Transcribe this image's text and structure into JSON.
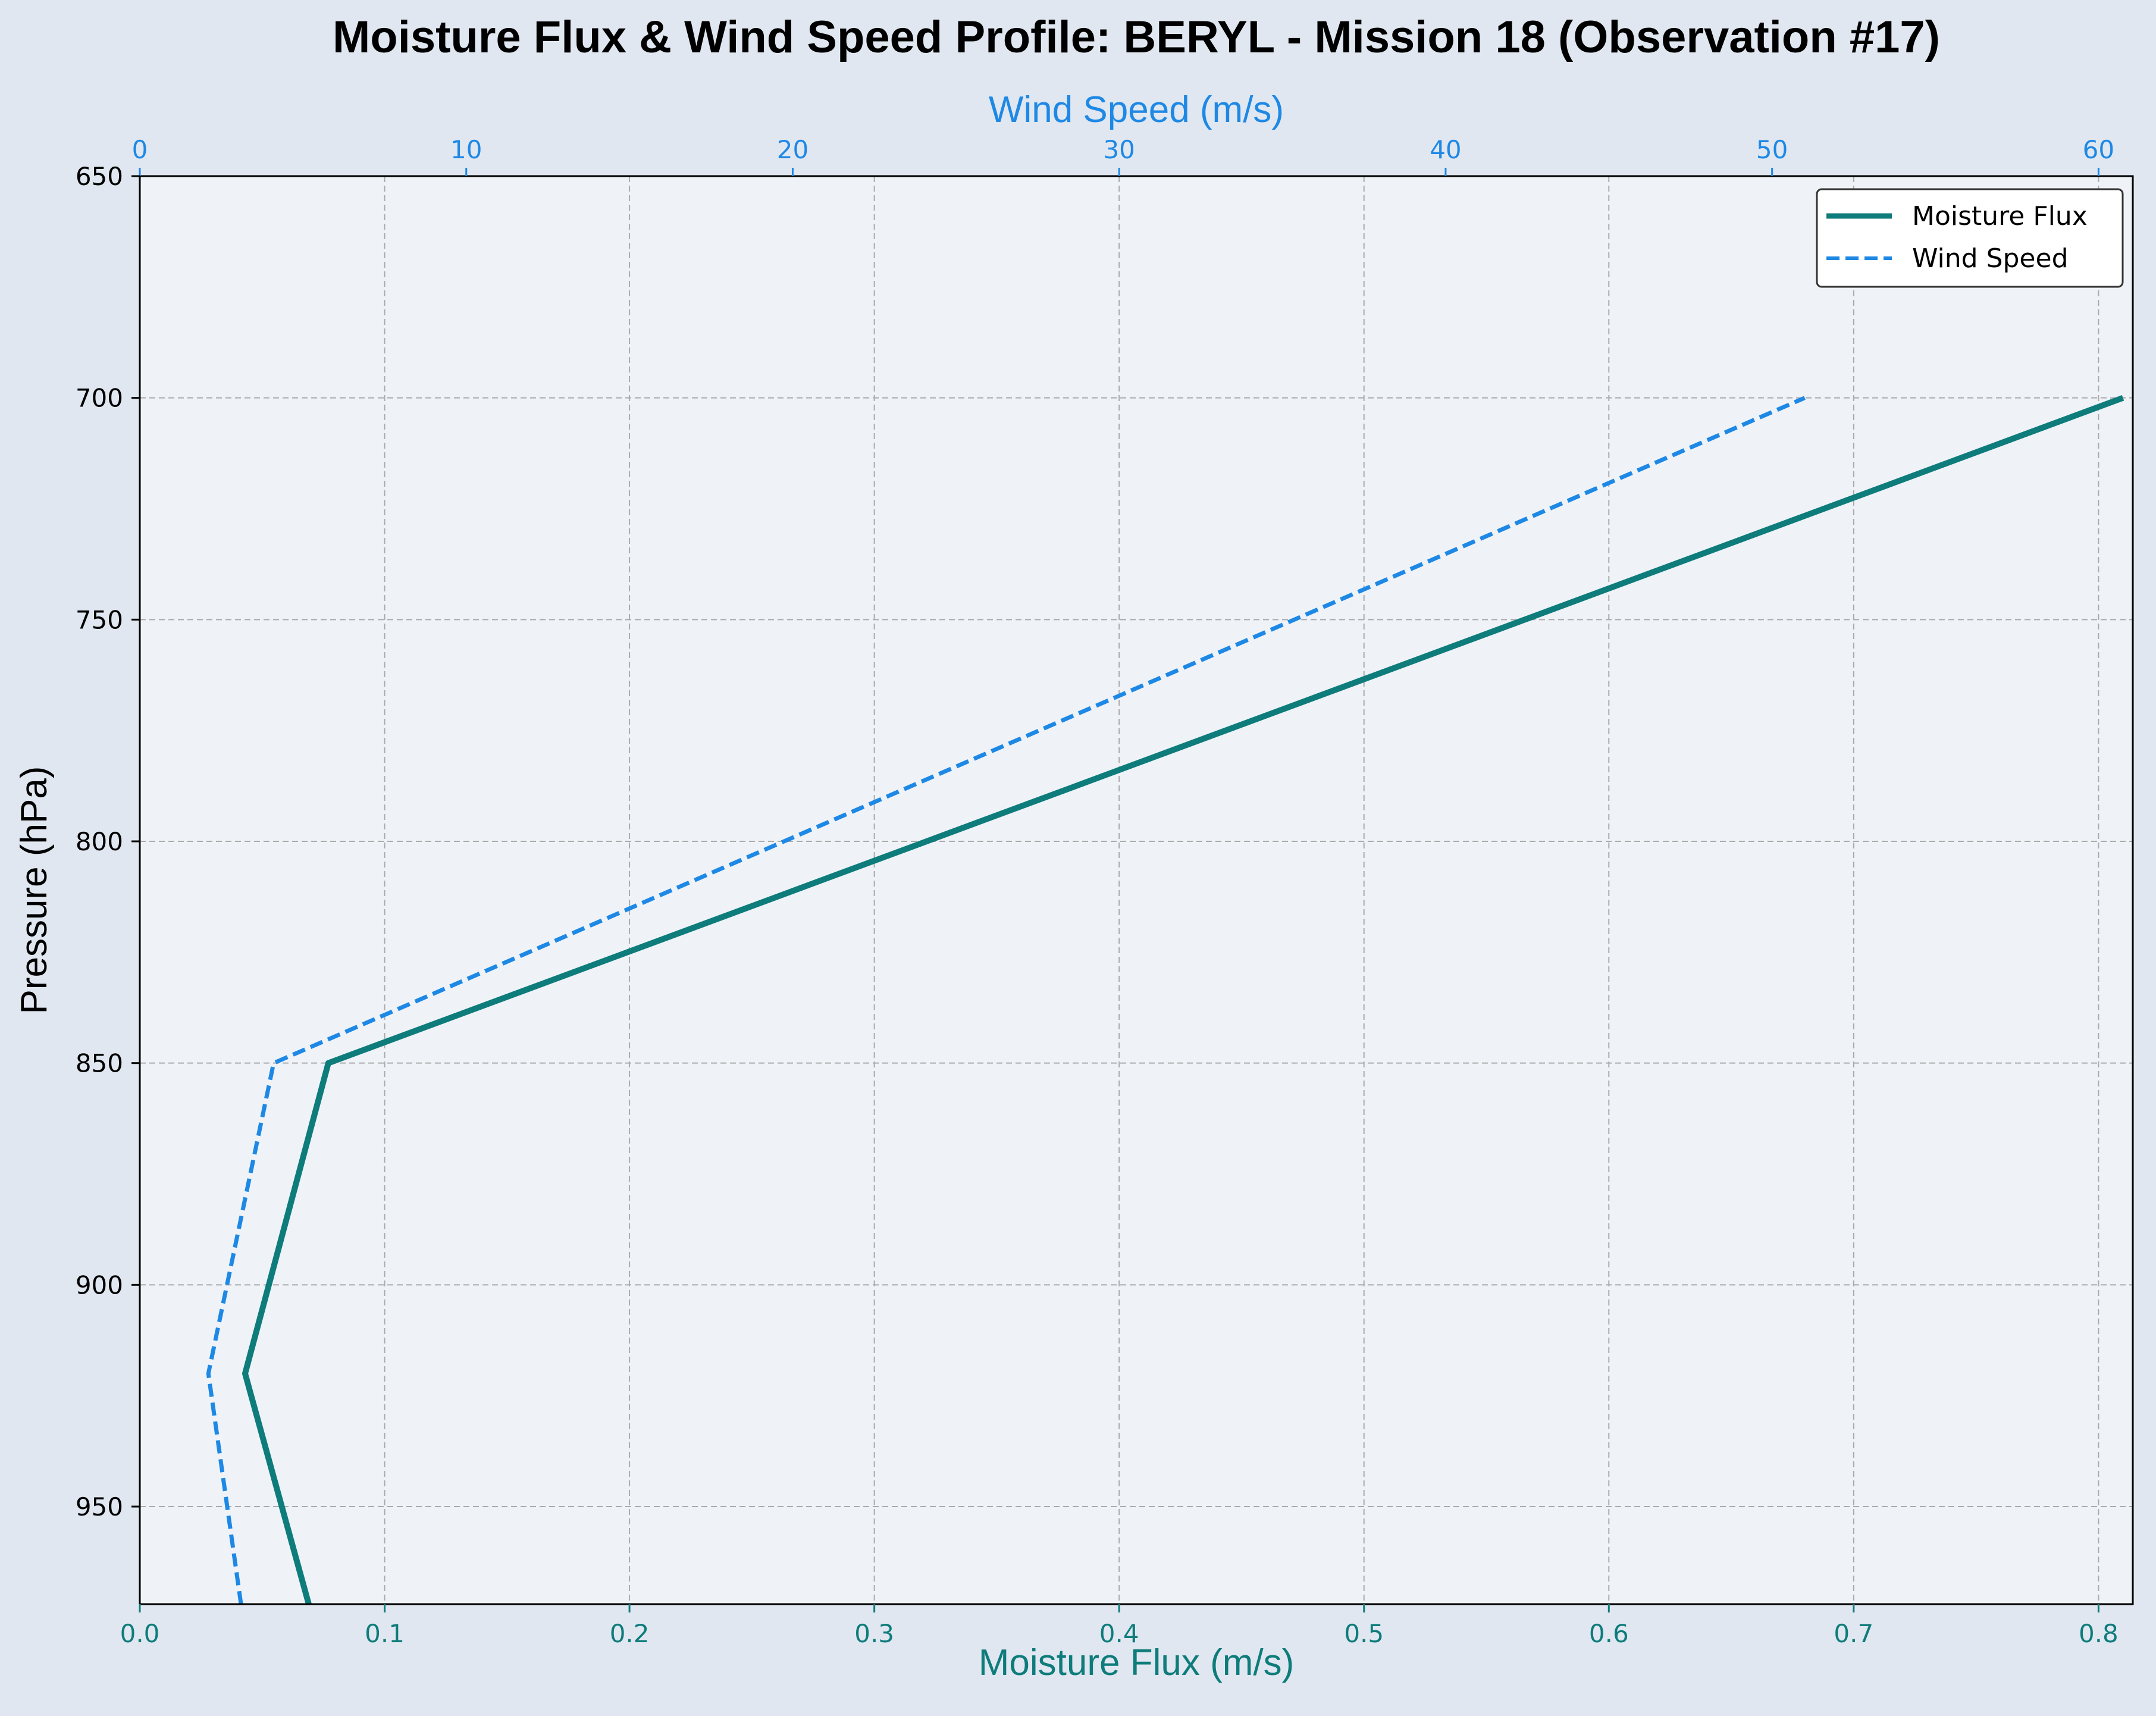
{
  "chart_data": {
    "type": "line",
    "title": "Moisture Flux & Wind Speed Profile: BERYL - Mission 18 (Observation #17)",
    "xlabel": "Moisture Flux (m/s)",
    "x2label": "Wind Speed (m/s)",
    "ylabel": "Pressure (hPa)",
    "xlim": [
      0.0,
      0.814
    ],
    "x2lim": [
      0,
      61.05
    ],
    "ylim": [
      972,
      650
    ],
    "y_inverted": true,
    "grid": true,
    "legend_position": "top-right",
    "xticks": [
      0.0,
      0.1,
      0.2,
      0.3,
      0.4,
      0.5,
      0.6,
      0.7,
      0.8
    ],
    "xtick_labels": [
      "0.0",
      "0.1",
      "0.2",
      "0.3",
      "0.4",
      "0.5",
      "0.6",
      "0.7",
      "0.8"
    ],
    "x2ticks": [
      0,
      10,
      20,
      30,
      40,
      50,
      60
    ],
    "x2tick_labels": [
      "0",
      "10",
      "20",
      "30",
      "40",
      "50",
      "60"
    ],
    "yticks": [
      650,
      700,
      750,
      800,
      850,
      900,
      950
    ],
    "ytick_labels": [
      "650",
      "700",
      "750",
      "800",
      "850",
      "900",
      "950"
    ],
    "series": [
      {
        "name": "Moisture Flux",
        "axis": "bottom",
        "style": "solid",
        "color": "#0e7c7b",
        "x": [
          0.069,
          0.043,
          0.077,
          0.81
        ],
        "y": [
          972,
          920,
          850,
          700
        ]
      },
      {
        "name": "Wind Speed",
        "axis": "top",
        "style": "dashed",
        "color": "#1e88e5",
        "x": [
          3.1,
          2.1,
          4.1,
          51.0
        ],
        "y": [
          972,
          920,
          850,
          700
        ]
      }
    ]
  },
  "colors": {
    "figure_bg": "#e0e7f0",
    "plot_bg": "#eff3f8",
    "bottom_axis": "#0e7c7b",
    "top_axis": "#1e88e5",
    "grid": "#aaaaaa"
  }
}
